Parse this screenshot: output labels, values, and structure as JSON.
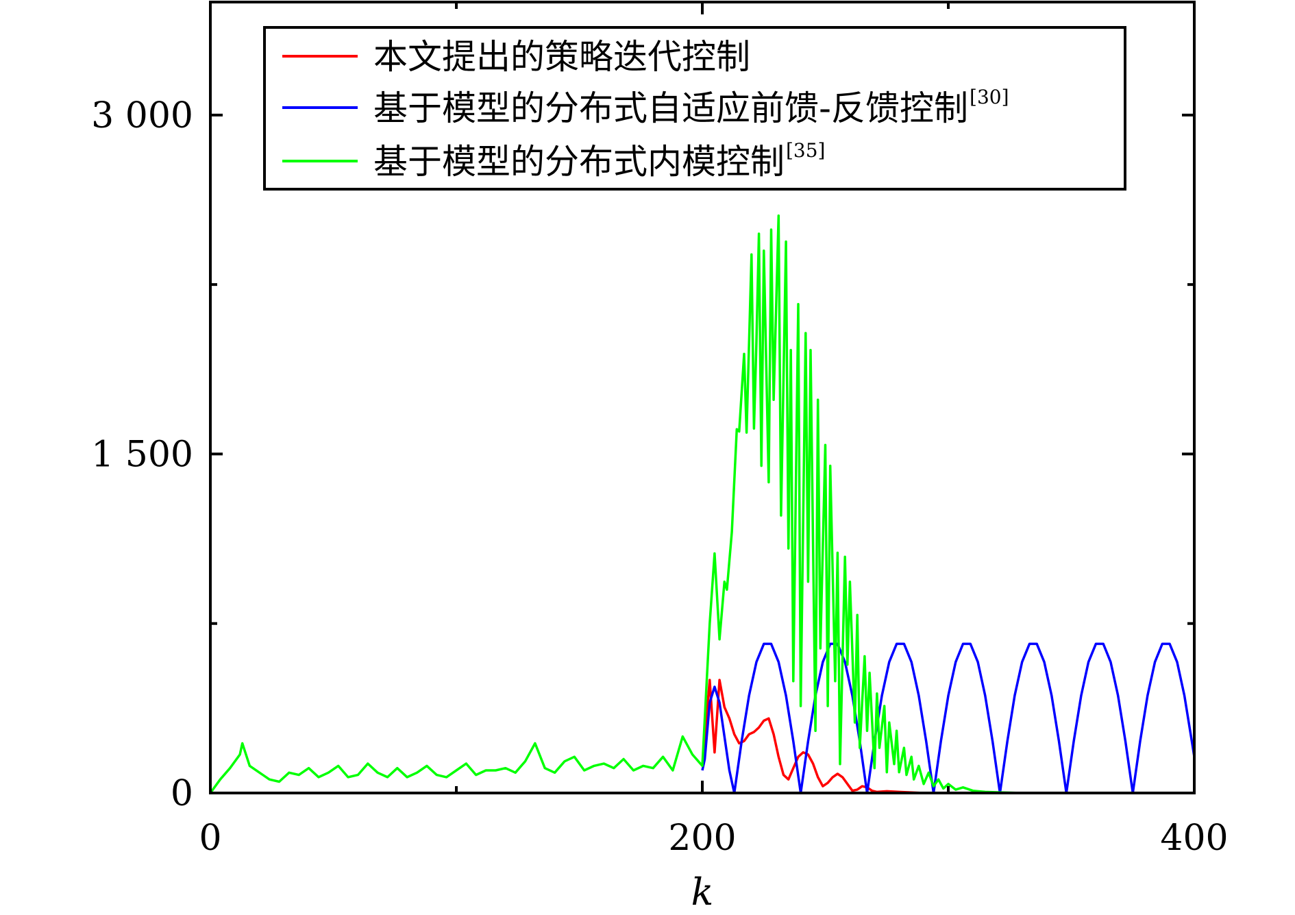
{
  "chart_data": {
    "type": "line",
    "title": "",
    "xlabel": "k",
    "ylabel": "",
    "xlim": [
      0,
      400
    ],
    "ylim": [
      0,
      3500
    ],
    "xticks": [
      0,
      100,
      200,
      300,
      400
    ],
    "xtick_labels": [
      "0",
      "",
      "200",
      "",
      "400"
    ],
    "yticks": [
      0,
      750,
      1500,
      2250,
      3000
    ],
    "ytick_labels": [
      "0",
      "",
      "1 500",
      "",
      "3 000"
    ],
    "grid": false,
    "legend_position": "top",
    "series": [
      {
        "name": "本文提出的策略迭代控制",
        "ref": "",
        "color": "#ff0000",
        "x": [
          200,
          203,
          205,
          207,
          209,
          211,
          213,
          215,
          217,
          219,
          221,
          223,
          225,
          227,
          229,
          231,
          233,
          235,
          237,
          239,
          241,
          243,
          245,
          247,
          249,
          251,
          253,
          255,
          257,
          259,
          261,
          263,
          265,
          267,
          269,
          271,
          275,
          280,
          290,
          300,
          400
        ],
        "y": [
          120,
          500,
          180,
          500,
          380,
          330,
          260,
          220,
          230,
          260,
          270,
          290,
          320,
          330,
          260,
          160,
          80,
          60,
          110,
          160,
          180,
          170,
          130,
          70,
          30,
          45,
          70,
          85,
          70,
          40,
          10,
          15,
          30,
          25,
          10,
          5,
          8,
          5,
          0,
          0,
          0
        ]
      },
      {
        "name": "基于模型的分布式自适应前馈-反馈控制",
        "ref": "[30]",
        "color": "#0000ff",
        "x": [
          200,
          201,
          203,
          205,
          207,
          209,
          211,
          213,
          216,
          219,
          222,
          225,
          228,
          231,
          234,
          237,
          240,
          243,
          246,
          249,
          252,
          255,
          258,
          261,
          264,
          267,
          270,
          273,
          276,
          279,
          282,
          285,
          288,
          291,
          294,
          297,
          300,
          303,
          306,
          309,
          312,
          315,
          318,
          321,
          324,
          327,
          330,
          333,
          336,
          339,
          342,
          345,
          348,
          351,
          354,
          357,
          360,
          363,
          366,
          369,
          372,
          375,
          378,
          381,
          384,
          387,
          390,
          393,
          396,
          399,
          400
        ],
        "y": [
          100,
          150,
          400,
          470,
          400,
          250,
          100,
          0,
          229,
          431,
          580,
          660,
          660,
          580,
          431,
          229,
          0,
          229,
          431,
          580,
          660,
          660,
          580,
          431,
          229,
          0,
          229,
          431,
          580,
          660,
          660,
          580,
          431,
          229,
          0,
          229,
          431,
          580,
          660,
          660,
          580,
          431,
          229,
          0,
          229,
          431,
          580,
          660,
          660,
          580,
          431,
          229,
          0,
          229,
          431,
          580,
          660,
          660,
          580,
          431,
          229,
          0,
          229,
          431,
          580,
          660,
          660,
          580,
          431,
          229,
          160
        ]
      },
      {
        "name": "基于模型的分布式内模控制",
        "ref": "[35]",
        "color": "#00ff00",
        "x": [
          0,
          4,
          8,
          12,
          13,
          16,
          20,
          24,
          28,
          32,
          36,
          40,
          44,
          48,
          52,
          56,
          60,
          64,
          68,
          72,
          76,
          80,
          84,
          88,
          92,
          96,
          100,
          104,
          108,
          112,
          116,
          120,
          124,
          128,
          132,
          136,
          140,
          144,
          148,
          152,
          156,
          160,
          164,
          168,
          172,
          176,
          180,
          184,
          188,
          192,
          196,
          200,
          203,
          205,
          207,
          209,
          210,
          212,
          214,
          215,
          217,
          218,
          220,
          221,
          222,
          223,
          224,
          225,
          227,
          228,
          229,
          231,
          232,
          234,
          235,
          236,
          237,
          239,
          240,
          242,
          243,
          244,
          246,
          247,
          248,
          250,
          251,
          252,
          254,
          255,
          256,
          258,
          259,
          260,
          262,
          263,
          264,
          266,
          267,
          268,
          270,
          271,
          272,
          274,
          275,
          276,
          278,
          279,
          280,
          282,
          283,
          285,
          286,
          288,
          290,
          292,
          294,
          296,
          298,
          300,
          303,
          306,
          310,
          315,
          320,
          330,
          400
        ],
        "y": [
          0,
          60,
          110,
          170,
          220,
          120,
          90,
          60,
          50,
          90,
          80,
          110,
          70,
          90,
          120,
          70,
          80,
          130,
          90,
          70,
          110,
          70,
          90,
          120,
          80,
          70,
          100,
          130,
          80,
          100,
          100,
          110,
          90,
          140,
          220,
          110,
          90,
          140,
          160,
          100,
          120,
          130,
          110,
          150,
          100,
          120,
          110,
          160,
          100,
          250,
          170,
          120,
          750,
          1060,
          680,
          935,
          900,
          1155,
          1610,
          1600,
          1943,
          1595,
          2383,
          1613,
          2000,
          2475,
          1448,
          2400,
          1375,
          2493,
          1740,
          2555,
          1228,
          2440,
          1082,
          1960,
          495,
          2163,
          385,
          2035,
          935,
          1960,
          275,
          1740,
          640,
          1540,
          385,
          1448,
          495,
          1063,
          128,
          1045,
          568,
          935,
          312,
          788,
          200,
          605,
          275,
          532,
          110,
          440,
          200,
          385,
          92,
          312,
          128,
          275,
          92,
          200,
          80,
          160,
          60,
          120,
          40,
          90,
          30,
          60,
          20,
          40,
          15,
          25,
          10,
          5,
          3,
          0,
          0
        ]
      }
    ]
  }
}
